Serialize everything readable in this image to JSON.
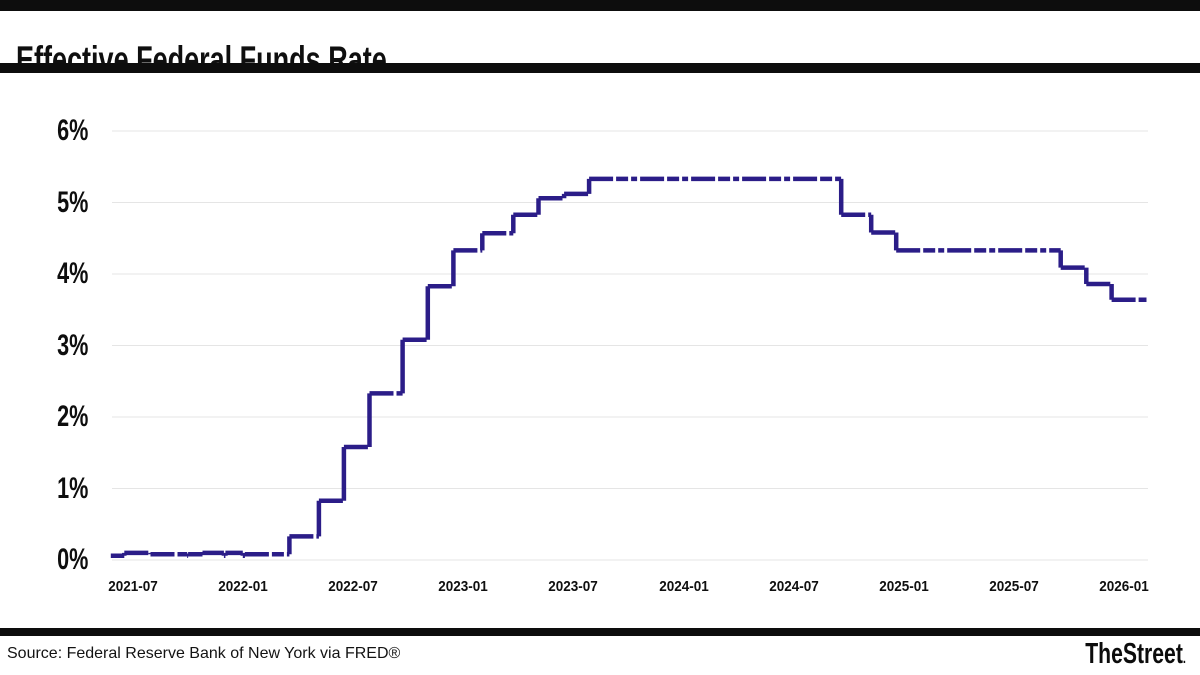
{
  "header": {
    "title": "Effective Federal Funds Rate"
  },
  "footer": {
    "source": "Source: Federal Reserve Bank of New York via FRED®",
    "brand": "TheStreet",
    "brand_suffix": "."
  },
  "chart_data": {
    "type": "line",
    "title": "Effective Federal Funds Rate",
    "subtype": "step",
    "line_color": "#2b1d88",
    "grid_color": "#e5e5e5",
    "line_style": "dashed",
    "legend": "none",
    "grid": "horizontal",
    "ylabel": "",
    "xlabel": "",
    "ylim": [
      0,
      6.3
    ],
    "x_range": [
      "2021-05-25",
      "2026-02-08"
    ],
    "y_ticks": [
      {
        "label": "0%",
        "value": 0
      },
      {
        "label": "1%",
        "value": 1
      },
      {
        "label": "2%",
        "value": 2
      },
      {
        "label": "3%",
        "value": 3
      },
      {
        "label": "4%",
        "value": 4
      },
      {
        "label": "5%",
        "value": 5
      },
      {
        "label": "6%",
        "value": 6
      }
    ],
    "x_ticks": [
      {
        "label": "2021-07",
        "date": "2021-07-01"
      },
      {
        "label": "2022-01",
        "date": "2022-01-01"
      },
      {
        "label": "2022-07",
        "date": "2022-07-01"
      },
      {
        "label": "2023-01",
        "date": "2023-01-01"
      },
      {
        "label": "2023-07",
        "date": "2023-07-01"
      },
      {
        "label": "2024-01",
        "date": "2024-01-01"
      },
      {
        "label": "2024-07",
        "date": "2024-07-01"
      },
      {
        "label": "2025-01",
        "date": "2025-01-01"
      },
      {
        "label": "2025-07",
        "date": "2025-07-01"
      },
      {
        "label": "2026-01",
        "date": "2026-01-01"
      }
    ],
    "series": [
      {
        "name": "Effective Federal Funds Rate (%)",
        "points": [
          [
            "2021-05-25",
            0.06
          ],
          [
            "2021-06-17",
            0.1
          ],
          [
            "2021-07-30",
            0.08
          ],
          [
            "2021-09-30",
            0.06
          ],
          [
            "2021-10-01",
            0.08
          ],
          [
            "2021-10-25",
            0.1
          ],
          [
            "2021-11-30",
            0.06
          ],
          [
            "2021-12-02",
            0.1
          ],
          [
            "2021-12-31",
            0.06
          ],
          [
            "2022-01-04",
            0.08
          ],
          [
            "2022-03-17",
            0.33
          ],
          [
            "2022-05-05",
            0.83
          ],
          [
            "2022-06-16",
            1.58
          ],
          [
            "2022-07-28",
            2.33
          ],
          [
            "2022-09-22",
            3.08
          ],
          [
            "2022-11-03",
            3.83
          ],
          [
            "2022-12-15",
            4.33
          ],
          [
            "2023-02-02",
            4.57
          ],
          [
            "2023-03-23",
            4.83
          ],
          [
            "2023-05-04",
            5.06
          ],
          [
            "2023-06-16",
            5.12
          ],
          [
            "2023-07-27",
            5.33
          ],
          [
            "2024-09-19",
            4.83
          ],
          [
            "2024-11-08",
            4.58
          ],
          [
            "2024-12-19",
            4.33
          ],
          [
            "2025-09-18",
            4.09
          ],
          [
            "2025-10-30",
            3.86
          ],
          [
            "2025-12-11",
            3.64
          ],
          [
            "2026-02-08",
            3.64
          ]
        ]
      }
    ]
  }
}
